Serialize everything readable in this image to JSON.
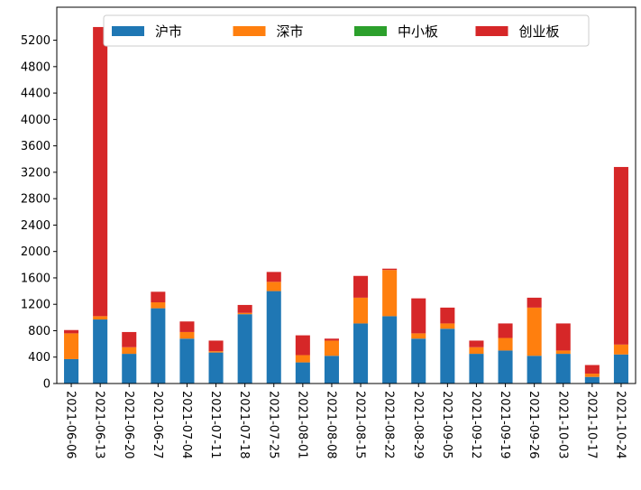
{
  "chart_data": {
    "type": "bar",
    "stacked": true,
    "title": "",
    "xlabel": "",
    "ylabel": "",
    "ylim": [
      0,
      5700
    ],
    "yticks": [
      0,
      400,
      800,
      1200,
      1600,
      2000,
      2400,
      2800,
      3200,
      3600,
      4000,
      4400,
      4800,
      5200
    ],
    "grid": false,
    "legend": {
      "placement": "top-center",
      "columns": 4
    },
    "categories": [
      "2021-06-06",
      "2021-06-13",
      "2021-06-20",
      "2021-06-27",
      "2021-07-04",
      "2021-07-11",
      "2021-07-18",
      "2021-07-25",
      "2021-08-01",
      "2021-08-08",
      "2021-08-15",
      "2021-08-22",
      "2021-08-29",
      "2021-09-05",
      "2021-09-12",
      "2021-09-19",
      "2021-09-26",
      "2021-10-03",
      "2021-10-17",
      "2021-10-24"
    ],
    "series": [
      {
        "name": "沪市",
        "color": "#1f77b4",
        "values": [
          370,
          970,
          450,
          1140,
          680,
          470,
          1050,
          1400,
          320,
          420,
          910,
          1020,
          680,
          830,
          450,
          500,
          420,
          450,
          100,
          440
        ]
      },
      {
        "name": "深市",
        "color": "#ff7f0e",
        "values": [
          390,
          50,
          100,
          90,
          100,
          20,
          20,
          140,
          110,
          230,
          390,
          700,
          80,
          80,
          100,
          190,
          730,
          50,
          50,
          150
        ]
      },
      {
        "name": "中小板",
        "color": "#2ca02c",
        "values": [
          0,
          0,
          0,
          0,
          0,
          0,
          0,
          0,
          0,
          0,
          0,
          0,
          0,
          0,
          0,
          0,
          0,
          0,
          0,
          0
        ]
      },
      {
        "name": "创业板",
        "color": "#d62728",
        "values": [
          50,
          4380,
          230,
          160,
          160,
          160,
          120,
          150,
          300,
          30,
          330,
          20,
          530,
          240,
          100,
          220,
          150,
          410,
          130,
          2690
        ]
      }
    ]
  }
}
